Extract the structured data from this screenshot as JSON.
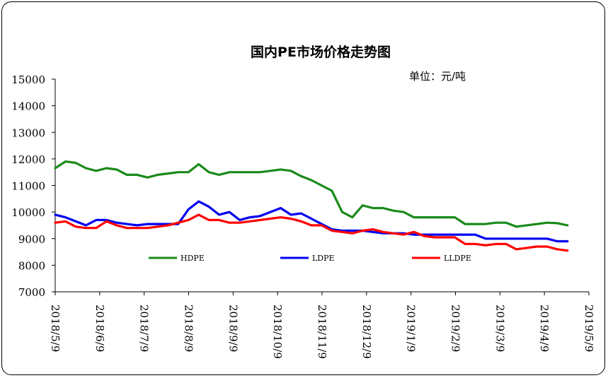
{
  "chart_data": {
    "type": "line",
    "title": "国内PE市场价格走势图",
    "unit_label": "单位：元/吨",
    "xlabel": "",
    "ylabel": "",
    "ylim": [
      7000,
      15000
    ],
    "yticks": [
      7000,
      8000,
      9000,
      10000,
      11000,
      12000,
      13000,
      14000,
      15000
    ],
    "grid": false,
    "legend": "bottom-inside",
    "x_ticks": [
      "2018/5/9",
      "2018/6/9",
      "2018/7/9",
      "2018/8/9",
      "2018/9/9",
      "2018/10/9",
      "2018/11/9",
      "2018/12/9",
      "2019/1/9",
      "2019/2/9",
      "2019/3/9",
      "2019/4/9",
      "2019/5/9"
    ],
    "series": [
      {
        "name": "HDPE",
        "color": "#1a8a1a",
        "values": [
          11650,
          11900,
          11850,
          11650,
          11550,
          11650,
          11600,
          11400,
          11400,
          11300,
          11400,
          11450,
          11500,
          11500,
          11800,
          11500,
          11400,
          11500,
          11500,
          11500,
          11500,
          11550,
          11600,
          11550,
          11350,
          11200,
          11000,
          10800,
          10000,
          9800,
          10250,
          10150,
          10150,
          10050,
          10000,
          9800,
          9800,
          9800,
          9800,
          9800,
          9550,
          9550,
          9550,
          9600,
          9600,
          9450,
          9500,
          9550,
          9600,
          9580,
          9500
        ]
      },
      {
        "name": "LDPE",
        "color": "#0000ee",
        "values": [
          9900,
          9800,
          9650,
          9500,
          9700,
          9700,
          9600,
          9550,
          9500,
          9550,
          9550,
          9550,
          9550,
          10100,
          10400,
          10200,
          9900,
          10000,
          9700,
          9800,
          9850,
          10000,
          10150,
          9900,
          9950,
          9750,
          9550,
          9350,
          9300,
          9300,
          9300,
          9250,
          9200,
          9200,
          9200,
          9150,
          9150,
          9150,
          9150,
          9150,
          9150,
          9150,
          9000,
          9000,
          9000,
          9000,
          9000,
          9000,
          9000,
          8900,
          8900
        ]
      },
      {
        "name": "LLDPE",
        "color": "#ff0000",
        "values": [
          9600,
          9650,
          9450,
          9400,
          9400,
          9650,
          9500,
          9400,
          9400,
          9400,
          9450,
          9500,
          9600,
          9700,
          9900,
          9700,
          9700,
          9600,
          9600,
          9650,
          9700,
          9750,
          9800,
          9750,
          9650,
          9500,
          9500,
          9300,
          9250,
          9200,
          9300,
          9350,
          9250,
          9200,
          9150,
          9250,
          9100,
          9050,
          9050,
          9050,
          8800,
          8800,
          8750,
          8800,
          8800,
          8600,
          8650,
          8700,
          8700,
          8600,
          8550
        ]
      }
    ]
  }
}
